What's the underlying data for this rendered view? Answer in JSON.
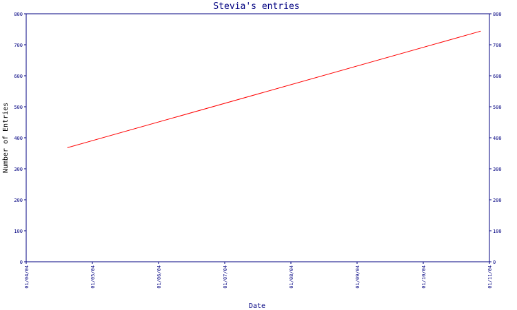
{
  "chart_data": {
    "type": "line",
    "title": "Stevia's entries",
    "xlabel": "Date",
    "ylabel": "Number of Entries",
    "x_ticks": [
      "01/04/04",
      "01/05/04",
      "01/06/04",
      "01/07/04",
      "01/08/04",
      "01/09/04",
      "01/10/04",
      "01/11/04"
    ],
    "y_ticks": [
      0,
      100,
      200,
      300,
      400,
      500,
      600,
      700,
      800
    ],
    "ylim": [
      0,
      800
    ],
    "xlim": [
      "2004-04-01",
      "2004-11-01"
    ],
    "grid": false,
    "series": [
      {
        "points": [
          {
            "x": "2004-04-20",
            "y": 368
          },
          {
            "x": "2004-10-28",
            "y": 744
          }
        ]
      }
    ],
    "colors": {
      "axis": "#000080",
      "text": "#000080",
      "line": "#ff0000"
    }
  }
}
